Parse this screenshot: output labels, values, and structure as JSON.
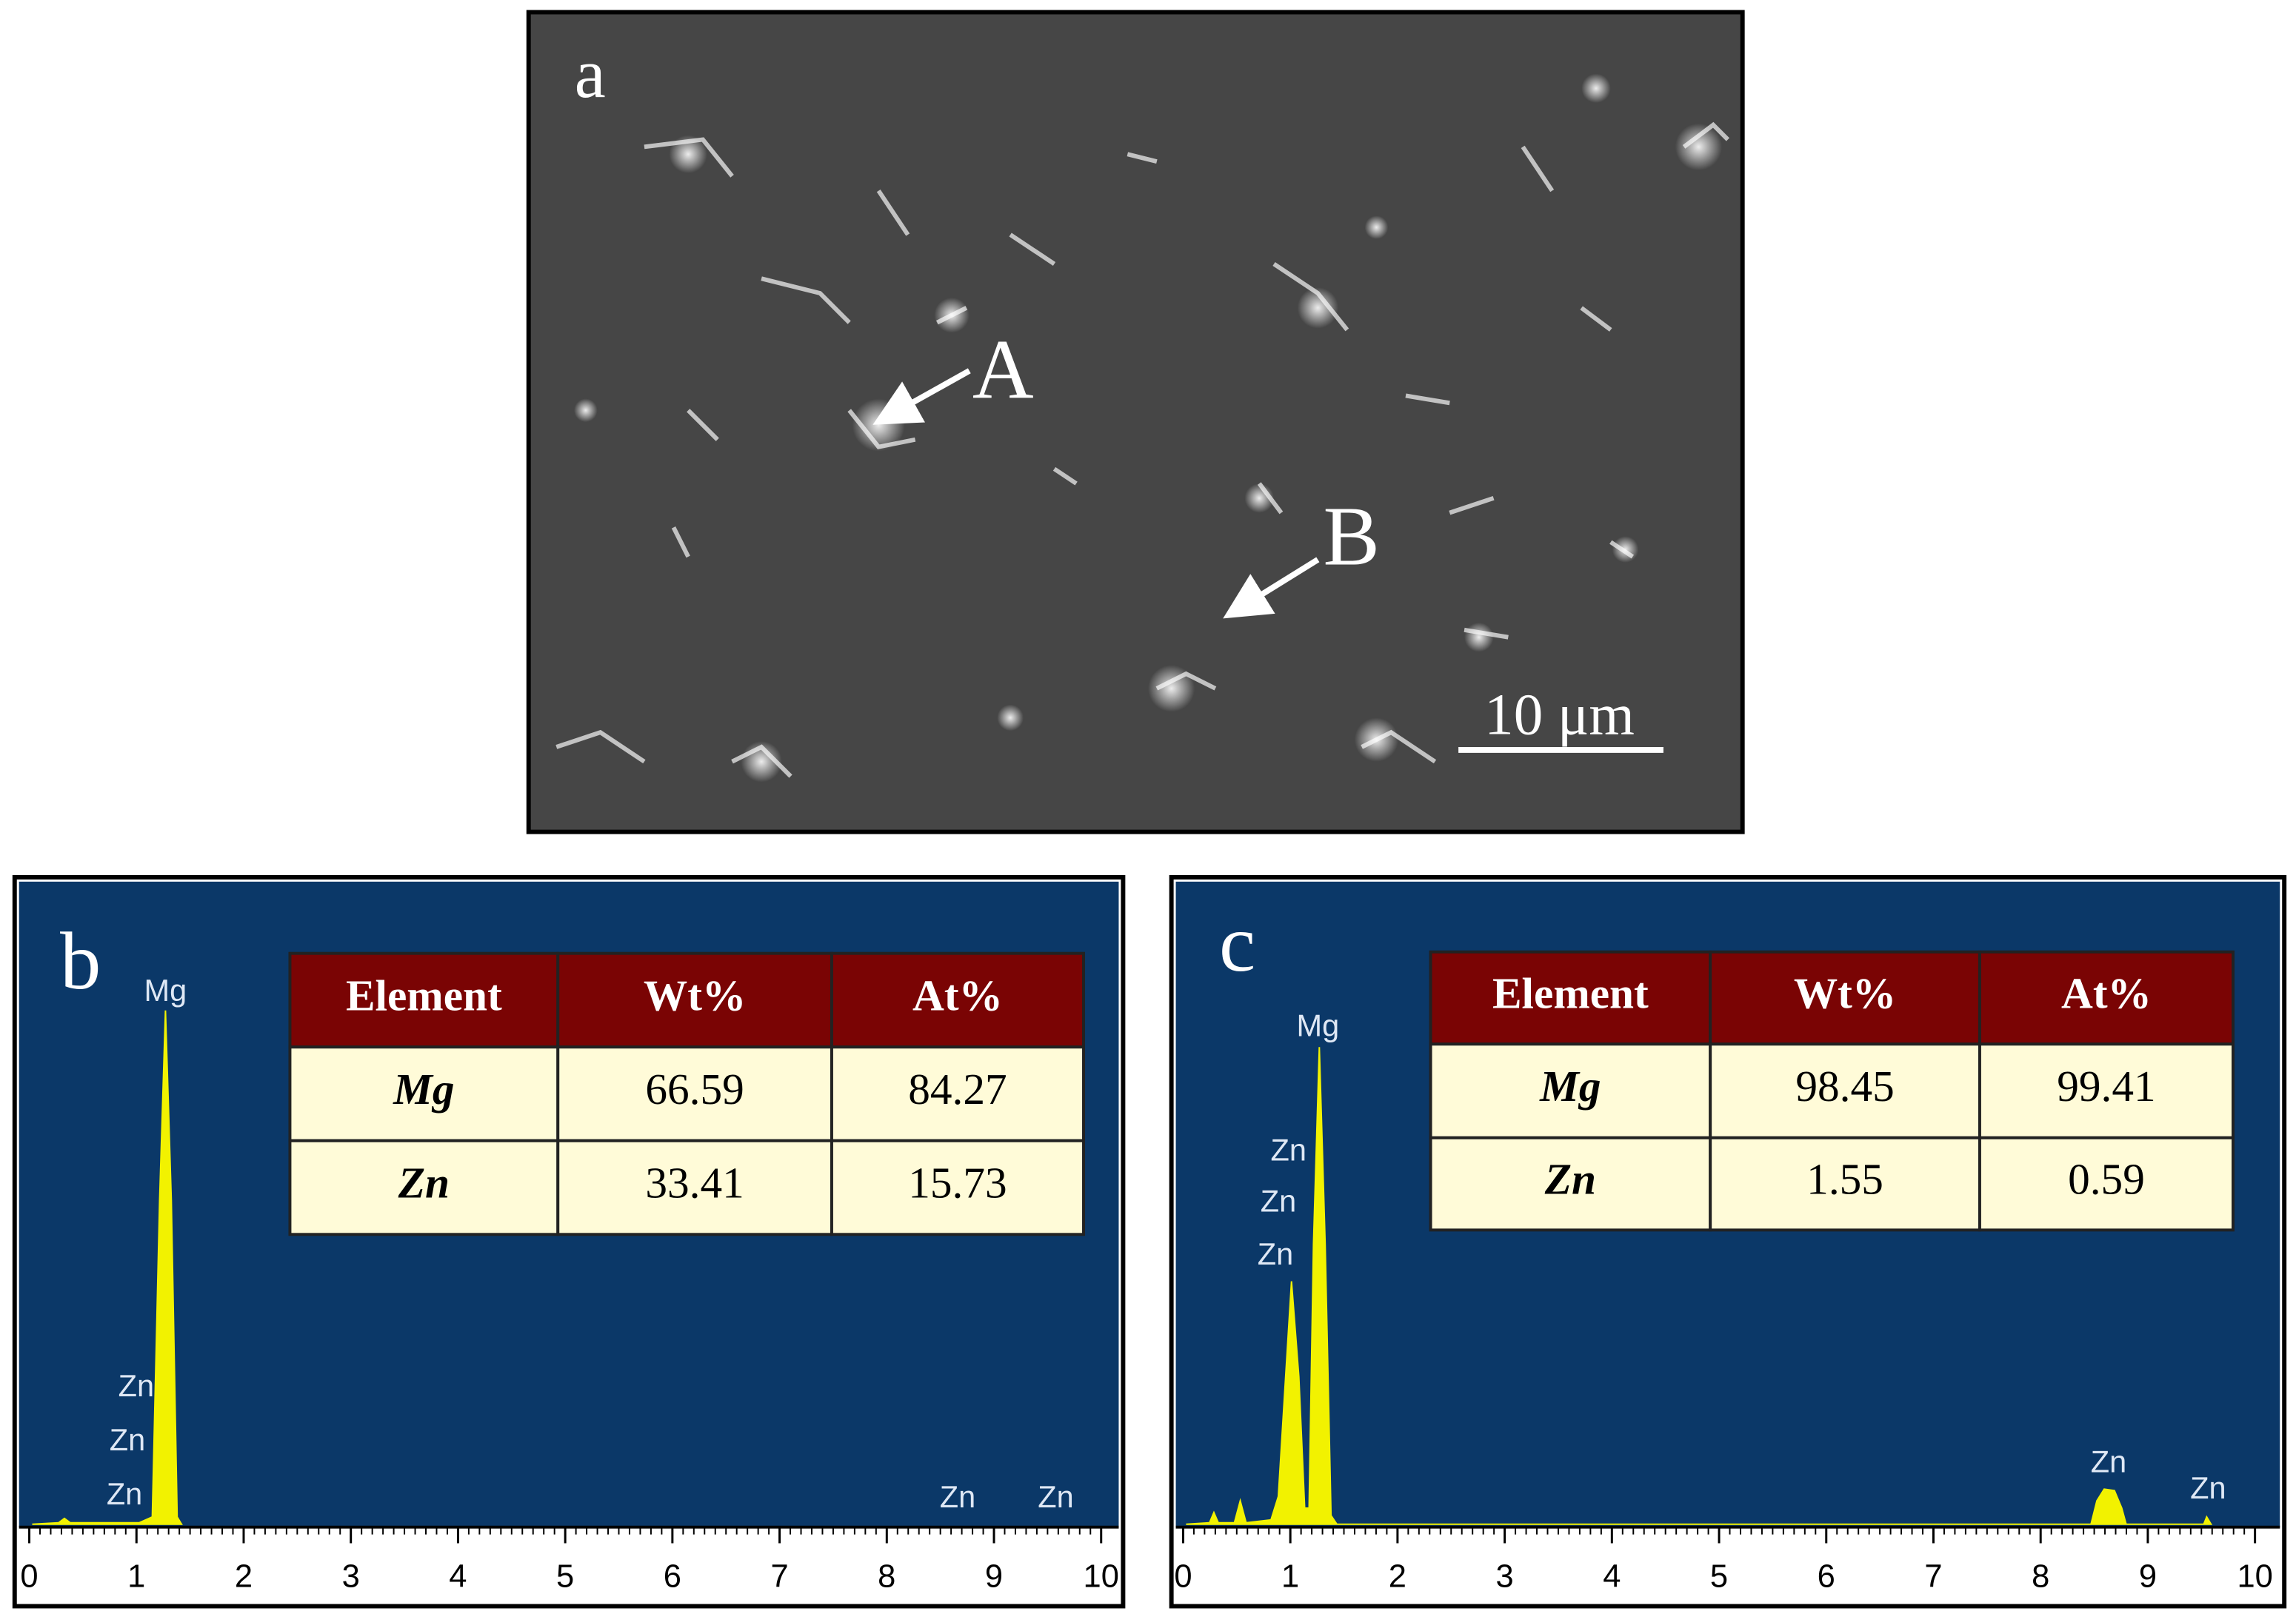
{
  "panel_a": {
    "label": "a",
    "markers": [
      "A",
      "B"
    ],
    "scale_bar": "10 μm"
  },
  "panel_b": {
    "label": "b",
    "table": {
      "header": [
        "Element",
        "Wt%",
        "At%"
      ],
      "rows": [
        [
          "Mg",
          66.59,
          84.27
        ],
        [
          "Zn",
          33.41,
          15.73
        ]
      ]
    },
    "peak_labels": [
      "Mg",
      "Zn",
      "Zn",
      "Zn",
      "Zn",
      "Zn"
    ],
    "xlim": [
      0,
      10
    ],
    "xticks": [
      0,
      1,
      2,
      3,
      4,
      5,
      6,
      7,
      8,
      9,
      10
    ]
  },
  "panel_c": {
    "label": "c",
    "table": {
      "header": [
        "Element",
        "Wt%",
        "At%"
      ],
      "rows": [
        [
          "Mg",
          98.45,
          99.41
        ],
        [
          "Zn",
          1.55,
          0.59
        ]
      ]
    },
    "peak_labels": [
      "Mg",
      "Zn",
      "Zn",
      "Zn",
      "Zn",
      "Zn"
    ],
    "xlim": [
      0,
      10
    ],
    "xticks": [
      0,
      1,
      2,
      3,
      4,
      5,
      6,
      7,
      8,
      9,
      10
    ]
  }
}
